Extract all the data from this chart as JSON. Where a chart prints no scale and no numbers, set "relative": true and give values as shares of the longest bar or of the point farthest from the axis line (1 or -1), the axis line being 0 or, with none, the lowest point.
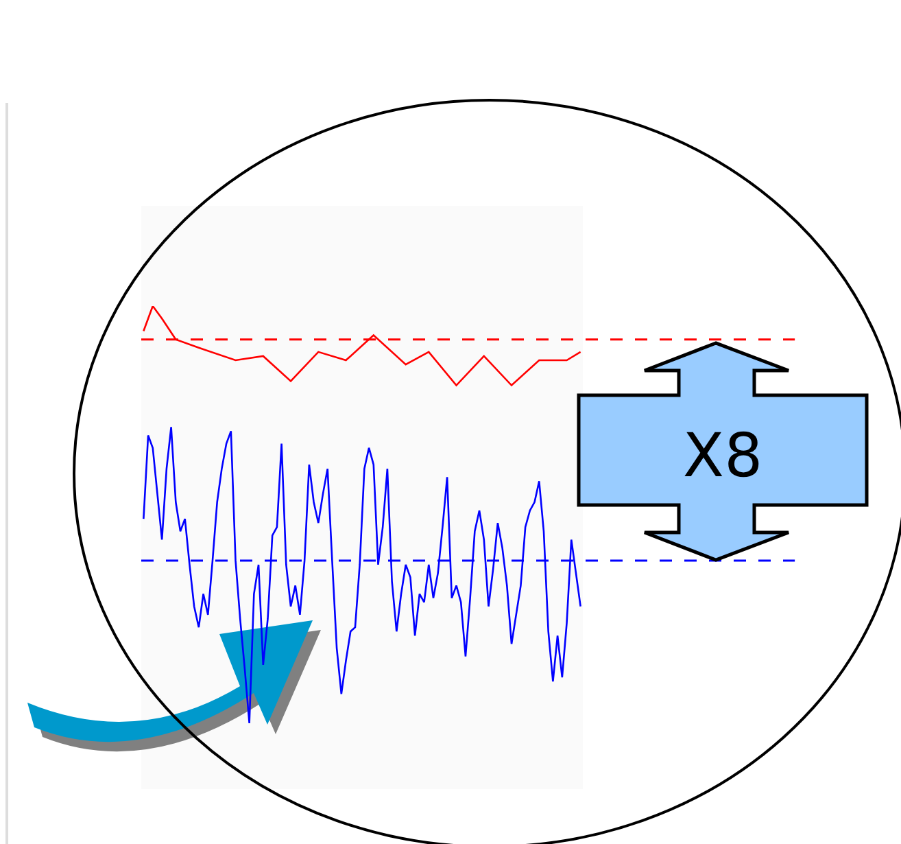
{
  "chart_data": {
    "type": "line",
    "relative": true,
    "categories": [
      null,
      null,
      null,
      null,
      null,
      null,
      null,
      null,
      null,
      null,
      null,
      null,
      null,
      null,
      null,
      null,
      null,
      null,
      null,
      null,
      null,
      null,
      null,
      null,
      null,
      null,
      null,
      null,
      null,
      null,
      null,
      null,
      null,
      null,
      null,
      null,
      null,
      null,
      null,
      null,
      null,
      null,
      null,
      null,
      null,
      null,
      null,
      null,
      null,
      null,
      null,
      null,
      null,
      null,
      null,
      null,
      null,
      null,
      null,
      null,
      null,
      null,
      null,
      null,
      null,
      null,
      null,
      null,
      null,
      null,
      null,
      null,
      null,
      null,
      null,
      null,
      null,
      null,
      null,
      null,
      null,
      null,
      null,
      null,
      null,
      null,
      null,
      null,
      null,
      null,
      null,
      null,
      null,
      null,
      null,
      null
    ],
    "series": [
      {
        "color": "#ff0000",
        "values": [
          0.94,
          null,
          1,
          null,
          0.97,
          null,
          null,
          0.92,
          null,
          null,
          null,
          null,
          0.9,
          null,
          null,
          null,
          null,
          null,
          null,
          null,
          0.87,
          null,
          null,
          null,
          null,
          null,
          0.88,
          null,
          null,
          null,
          null,
          null,
          0.82,
          null,
          null,
          null,
          null,
          null,
          0.89,
          null,
          null,
          null,
          null,
          null,
          0.87,
          null,
          null,
          null,
          null,
          null,
          0.93,
          null,
          null,
          null,
          null,
          null,
          null,
          0.86,
          null,
          null,
          null,
          null,
          0.89,
          null,
          null,
          null,
          null,
          null,
          0.81,
          null,
          null,
          null,
          null,
          null,
          0.88,
          null,
          null,
          null,
          null,
          null,
          0.81,
          null,
          null,
          null,
          null,
          null,
          0.87,
          null,
          null,
          null,
          null,
          null,
          0.87,
          null,
          null,
          0.89
        ]
      },
      {
        "color": "#0000ff",
        "values": [
          0.49,
          0.69,
          0.66,
          0.55,
          0.44,
          0.61,
          0.71,
          0.53,
          0.46,
          0.49,
          0.38,
          0.28,
          0.23,
          0.31,
          0.26,
          0.39,
          0.53,
          0.61,
          0.67,
          0.7,
          0.39,
          0.25,
          0.13,
          0,
          0.31,
          0.38,
          0.14,
          0.25,
          0.45,
          0.47,
          0.67,
          0.38,
          0.28,
          0.33,
          0.26,
          0.39,
          0.62,
          0.53,
          0.48,
          0.55,
          0.61,
          0.39,
          0.18,
          0.07,
          0.15,
          0.22,
          0.23,
          0.38,
          0.61,
          0.66,
          0.62,
          0.38,
          0.47,
          0.61,
          0.34,
          0.22,
          0.31,
          0.38,
          0.35,
          0.21,
          0.31,
          0.29,
          0.38,
          0.3,
          0.36,
          0.47,
          0.59,
          0.3,
          0.33,
          0.29,
          0.16,
          0.3,
          0.46,
          0.51,
          0.44,
          0.28,
          0.37,
          0.48,
          0.42,
          0.33,
          0.19,
          0.26,
          0.33,
          0.47,
          0.51,
          0.53,
          0.58,
          0.46,
          0.22,
          0.1,
          0.21,
          0.11,
          0.24,
          0.44,
          0.36,
          0.28
        ]
      }
    ],
    "ref_lines": [
      {
        "axis": "y",
        "value": 0.92,
        "color": "#ff0000",
        "line_style": "dashed"
      },
      {
        "axis": "y",
        "value": 0.39,
        "color": "#0000ff",
        "line_style": "dashed"
      }
    ],
    "annotations": [
      "X8"
    ]
  }
}
